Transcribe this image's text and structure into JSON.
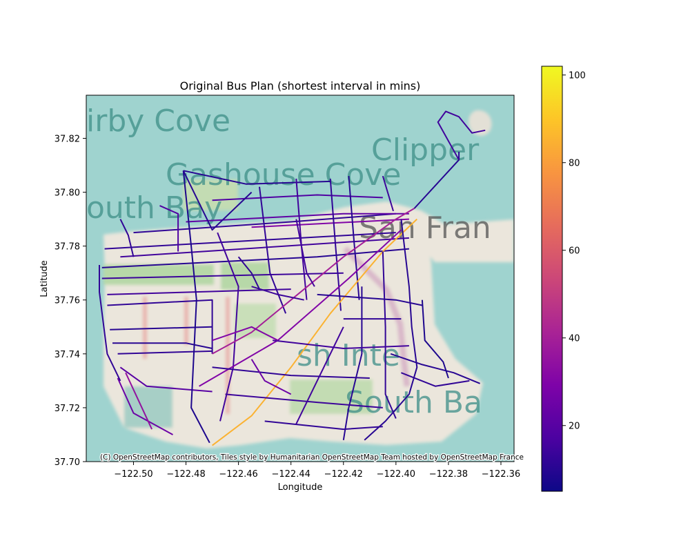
{
  "chart_data": {
    "type": "map",
    "title": "Original Bus Plan (shortest interval in mins)",
    "xlabel": "Longitude",
    "ylabel": "Latitude",
    "xlim": [
      -122.518,
      -122.355
    ],
    "ylim": [
      37.7,
      37.836
    ],
    "xticks": [
      -122.5,
      -122.48,
      -122.46,
      -122.44,
      -122.42,
      -122.4,
      -122.38,
      -122.36
    ],
    "xtick_labels": [
      "−122.50",
      "−122.48",
      "−122.46",
      "−122.44",
      "−122.42",
      "−122.40",
      "−122.38",
      "−122.36"
    ],
    "yticks": [
      37.7,
      37.72,
      37.74,
      37.76,
      37.78,
      37.8,
      37.82
    ],
    "ytick_labels": [
      "37.70",
      "37.72",
      "37.74",
      "37.76",
      "37.78",
      "37.80",
      "37.82"
    ],
    "colorbar": {
      "cmap": "plasma",
      "range": [
        5,
        102
      ],
      "ticks": [
        20,
        40,
        60,
        80,
        100
      ],
      "tick_labels": [
        "20",
        "40",
        "60",
        "80",
        "100"
      ]
    },
    "basemap_labels": [
      "irby Cove",
      "Gashouse Cove",
      "outh Bay",
      "Clipper",
      "San Fran",
      "sh Inte",
      "South Ba"
    ],
    "attribution": "(C) OpenStreetMap contributors, Tiles style by Humanitarian OpenStreetMap Team hosted by OpenStreetMap France",
    "routes": [
      {
        "interval": 12,
        "coords": [
          [
            -122.511,
            37.779
          ],
          [
            -122.4,
            37.785
          ]
        ]
      },
      {
        "interval": 15,
        "coords": [
          [
            -122.505,
            37.776
          ],
          [
            -122.395,
            37.783
          ]
        ]
      },
      {
        "interval": 10,
        "coords": [
          [
            -122.512,
            37.772
          ],
          [
            -122.43,
            37.776
          ],
          [
            -122.395,
            37.779
          ]
        ]
      },
      {
        "interval": 14,
        "coords": [
          [
            -122.512,
            37.768
          ],
          [
            -122.42,
            37.77
          ]
        ]
      },
      {
        "interval": 12,
        "coords": [
          [
            -122.5,
            37.785
          ],
          [
            -122.44,
            37.789
          ],
          [
            -122.4,
            37.792
          ]
        ]
      },
      {
        "interval": 22,
        "coords": [
          [
            -122.48,
            37.789
          ],
          [
            -122.42,
            37.792
          ],
          [
            -122.395,
            37.792
          ]
        ]
      },
      {
        "interval": 18,
        "coords": [
          [
            -122.47,
            37.797
          ],
          [
            -122.43,
            37.799
          ],
          [
            -122.405,
            37.798
          ]
        ]
      },
      {
        "interval": 30,
        "coords": [
          [
            -122.455,
            37.787
          ],
          [
            -122.395,
            37.79
          ]
        ]
      },
      {
        "interval": 12,
        "coords": [
          [
            -122.513,
            37.773
          ],
          [
            -122.513,
            37.763
          ],
          [
            -122.51,
            37.74
          ],
          [
            -122.505,
            37.73
          ]
        ]
      },
      {
        "interval": 15,
        "coords": [
          [
            -122.51,
            37.762
          ],
          [
            -122.44,
            37.764
          ]
        ]
      },
      {
        "interval": 12,
        "coords": [
          [
            -122.51,
            37.758
          ],
          [
            -122.47,
            37.76
          ],
          [
            -122.47,
            37.74
          ]
        ]
      },
      {
        "interval": 10,
        "coords": [
          [
            -122.509,
            37.749
          ],
          [
            -122.47,
            37.75
          ]
        ]
      },
      {
        "interval": 10,
        "coords": [
          [
            -122.508,
            37.744
          ],
          [
            -122.48,
            37.744
          ],
          [
            -122.47,
            37.742
          ]
        ]
      },
      {
        "interval": 12,
        "coords": [
          [
            -122.506,
            37.74
          ],
          [
            -122.47,
            37.741
          ]
        ]
      },
      {
        "interval": 20,
        "coords": [
          [
            -122.505,
            37.735
          ],
          [
            -122.495,
            37.728
          ],
          [
            -122.47,
            37.726
          ]
        ]
      },
      {
        "interval": 25,
        "coords": [
          [
            -122.506,
            37.731
          ],
          [
            -122.5,
            37.718
          ],
          [
            -122.485,
            37.71
          ]
        ]
      },
      {
        "interval": 35,
        "coords": [
          [
            -122.503,
            37.733
          ],
          [
            -122.493,
            37.712
          ]
        ]
      },
      {
        "interval": 8,
        "coords": [
          [
            -122.481,
            37.808
          ],
          [
            -122.478,
            37.78
          ],
          [
            -122.476,
            37.76
          ],
          [
            -122.478,
            37.72
          ],
          [
            -122.471,
            37.707
          ]
        ]
      },
      {
        "interval": 10,
        "coords": [
          [
            -122.481,
            37.808
          ],
          [
            -122.457,
            37.803
          ],
          [
            -122.425,
            37.804
          ]
        ]
      },
      {
        "interval": 10,
        "coords": [
          [
            -122.481,
            37.808
          ],
          [
            -122.47,
            37.786
          ],
          [
            -122.455,
            37.8
          ]
        ]
      },
      {
        "interval": 15,
        "coords": [
          [
            -122.468,
            37.785
          ],
          [
            -122.46,
            37.765
          ],
          [
            -122.462,
            37.735
          ],
          [
            -122.467,
            37.715
          ]
        ]
      },
      {
        "interval": 12,
        "coords": [
          [
            -122.452,
            37.802
          ],
          [
            -122.448,
            37.77
          ],
          [
            -122.442,
            37.755
          ]
        ]
      },
      {
        "interval": 15,
        "coords": [
          [
            -122.438,
            37.805
          ],
          [
            -122.436,
            37.78
          ],
          [
            -122.434,
            37.76
          ]
        ]
      },
      {
        "interval": 12,
        "coords": [
          [
            -122.425,
            37.805
          ],
          [
            -122.423,
            37.78
          ],
          [
            -122.421,
            37.756
          ]
        ]
      },
      {
        "interval": 10,
        "coords": [
          [
            -122.418,
            37.806
          ],
          [
            -122.416,
            37.782
          ],
          [
            -122.414,
            37.76
          ]
        ]
      },
      {
        "interval": 14,
        "coords": [
          [
            -122.405,
            37.806
          ],
          [
            -122.401,
            37.793
          ]
        ]
      },
      {
        "interval": 40,
        "coords": [
          [
            -122.47,
            37.74
          ],
          [
            -122.455,
            37.748
          ],
          [
            -122.44,
            37.76
          ],
          [
            -122.42,
            37.776
          ],
          [
            -122.4,
            37.79
          ],
          [
            -122.393,
            37.794
          ]
        ]
      },
      {
        "interval": 30,
        "coords": [
          [
            -122.475,
            37.728
          ],
          [
            -122.445,
            37.745
          ],
          [
            -122.418,
            37.768
          ],
          [
            -122.398,
            37.786
          ]
        ]
      },
      {
        "interval": 85,
        "coords": [
          [
            -122.47,
            37.706
          ],
          [
            -122.455,
            37.717
          ],
          [
            -122.44,
            37.735
          ],
          [
            -122.425,
            37.755
          ],
          [
            -122.405,
            37.778
          ],
          [
            -122.392,
            37.79
          ]
        ]
      },
      {
        "interval": 10,
        "coords": [
          [
            -122.393,
            37.794
          ],
          [
            -122.376,
            37.812
          ],
          [
            -122.376,
            37.815
          ]
        ]
      },
      {
        "interval": 15,
        "coords": [
          [
            -122.376,
            37.812
          ],
          [
            -122.384,
            37.826
          ],
          [
            -122.381,
            37.83
          ],
          [
            -122.376,
            37.828
          ],
          [
            -122.371,
            37.822
          ],
          [
            -122.366,
            37.823
          ]
        ]
      },
      {
        "interval": 10,
        "coords": [
          [
            -122.398,
            37.79
          ],
          [
            -122.395,
            37.765
          ],
          [
            -122.394,
            37.75
          ],
          [
            -122.392,
            37.735
          ],
          [
            -122.395,
            37.725
          ],
          [
            -122.404,
            37.715
          ],
          [
            -122.412,
            37.708
          ]
        ]
      },
      {
        "interval": 12,
        "coords": [
          [
            -122.405,
            37.778
          ],
          [
            -122.404,
            37.75
          ],
          [
            -122.404,
            37.725
          ],
          [
            -122.4,
            37.716
          ]
        ]
      },
      {
        "interval": 10,
        "coords": [
          [
            -122.413,
            37.765
          ],
          [
            -122.413,
            37.74
          ],
          [
            -122.418,
            37.72
          ],
          [
            -122.42,
            37.708
          ]
        ]
      },
      {
        "interval": 15,
        "coords": [
          [
            -122.42,
            37.75
          ],
          [
            -122.43,
            37.73
          ],
          [
            -122.438,
            37.714
          ]
        ]
      },
      {
        "interval": 12,
        "coords": [
          [
            -122.45,
            37.715
          ],
          [
            -122.42,
            37.712
          ],
          [
            -122.405,
            37.713
          ]
        ]
      },
      {
        "interval": 14,
        "coords": [
          [
            -122.465,
            37.725
          ],
          [
            -122.43,
            37.722
          ],
          [
            -122.405,
            37.72
          ]
        ]
      },
      {
        "interval": 12,
        "coords": [
          [
            -122.47,
            37.735
          ],
          [
            -122.44,
            37.732
          ],
          [
            -122.41,
            37.731
          ]
        ]
      },
      {
        "interval": 15,
        "coords": [
          [
            -122.447,
            37.745
          ],
          [
            -122.42,
            37.742
          ],
          [
            -122.395,
            37.743
          ]
        ]
      },
      {
        "interval": 10,
        "coords": [
          [
            -122.43,
            37.762
          ],
          [
            -122.4,
            37.76
          ],
          [
            -122.39,
            37.758
          ]
        ]
      },
      {
        "interval": 12,
        "coords": [
          [
            -122.42,
            37.753
          ],
          [
            -122.398,
            37.753
          ]
        ]
      },
      {
        "interval": 10,
        "coords": [
          [
            -122.402,
            37.74
          ],
          [
            -122.39,
            37.736
          ],
          [
            -122.378,
            37.733
          ],
          [
            -122.368,
            37.729
          ]
        ]
      },
      {
        "interval": 12,
        "coords": [
          [
            -122.398,
            37.733
          ],
          [
            -122.385,
            37.728
          ],
          [
            -122.372,
            37.73
          ]
        ]
      },
      {
        "interval": 8,
        "coords": [
          [
            -122.39,
            37.76
          ],
          [
            -122.389,
            37.745
          ],
          [
            -122.382,
            37.737
          ],
          [
            -122.38,
            37.731
          ]
        ]
      },
      {
        "interval": 14,
        "coords": [
          [
            -122.455,
            37.765
          ],
          [
            -122.445,
            37.762
          ],
          [
            -122.435,
            37.76
          ]
        ]
      },
      {
        "interval": 30,
        "coords": [
          [
            -122.47,
            37.745
          ],
          [
            -122.455,
            37.75
          ],
          [
            -122.445,
            37.745
          ]
        ]
      },
      {
        "interval": 25,
        "coords": [
          [
            -122.455,
            37.738
          ],
          [
            -122.45,
            37.73
          ],
          [
            -122.44,
            37.725
          ]
        ]
      },
      {
        "interval": 12,
        "coords": [
          [
            -122.505,
            37.79
          ],
          [
            -122.502,
            37.784
          ],
          [
            -122.5,
            37.776
          ]
        ]
      },
      {
        "interval": 18,
        "coords": [
          [
            -122.49,
            37.795
          ],
          [
            -122.483,
            37.792
          ],
          [
            -122.483,
            37.778
          ]
        ]
      },
      {
        "interval": 15,
        "coords": [
          [
            -122.438,
            37.79
          ],
          [
            -122.434,
            37.77
          ],
          [
            -122.431,
            37.765
          ]
        ]
      },
      {
        "interval": 12,
        "coords": [
          [
            -122.46,
            37.776
          ],
          [
            -122.455,
            37.77
          ],
          [
            -122.452,
            37.764
          ]
        ]
      }
    ]
  }
}
